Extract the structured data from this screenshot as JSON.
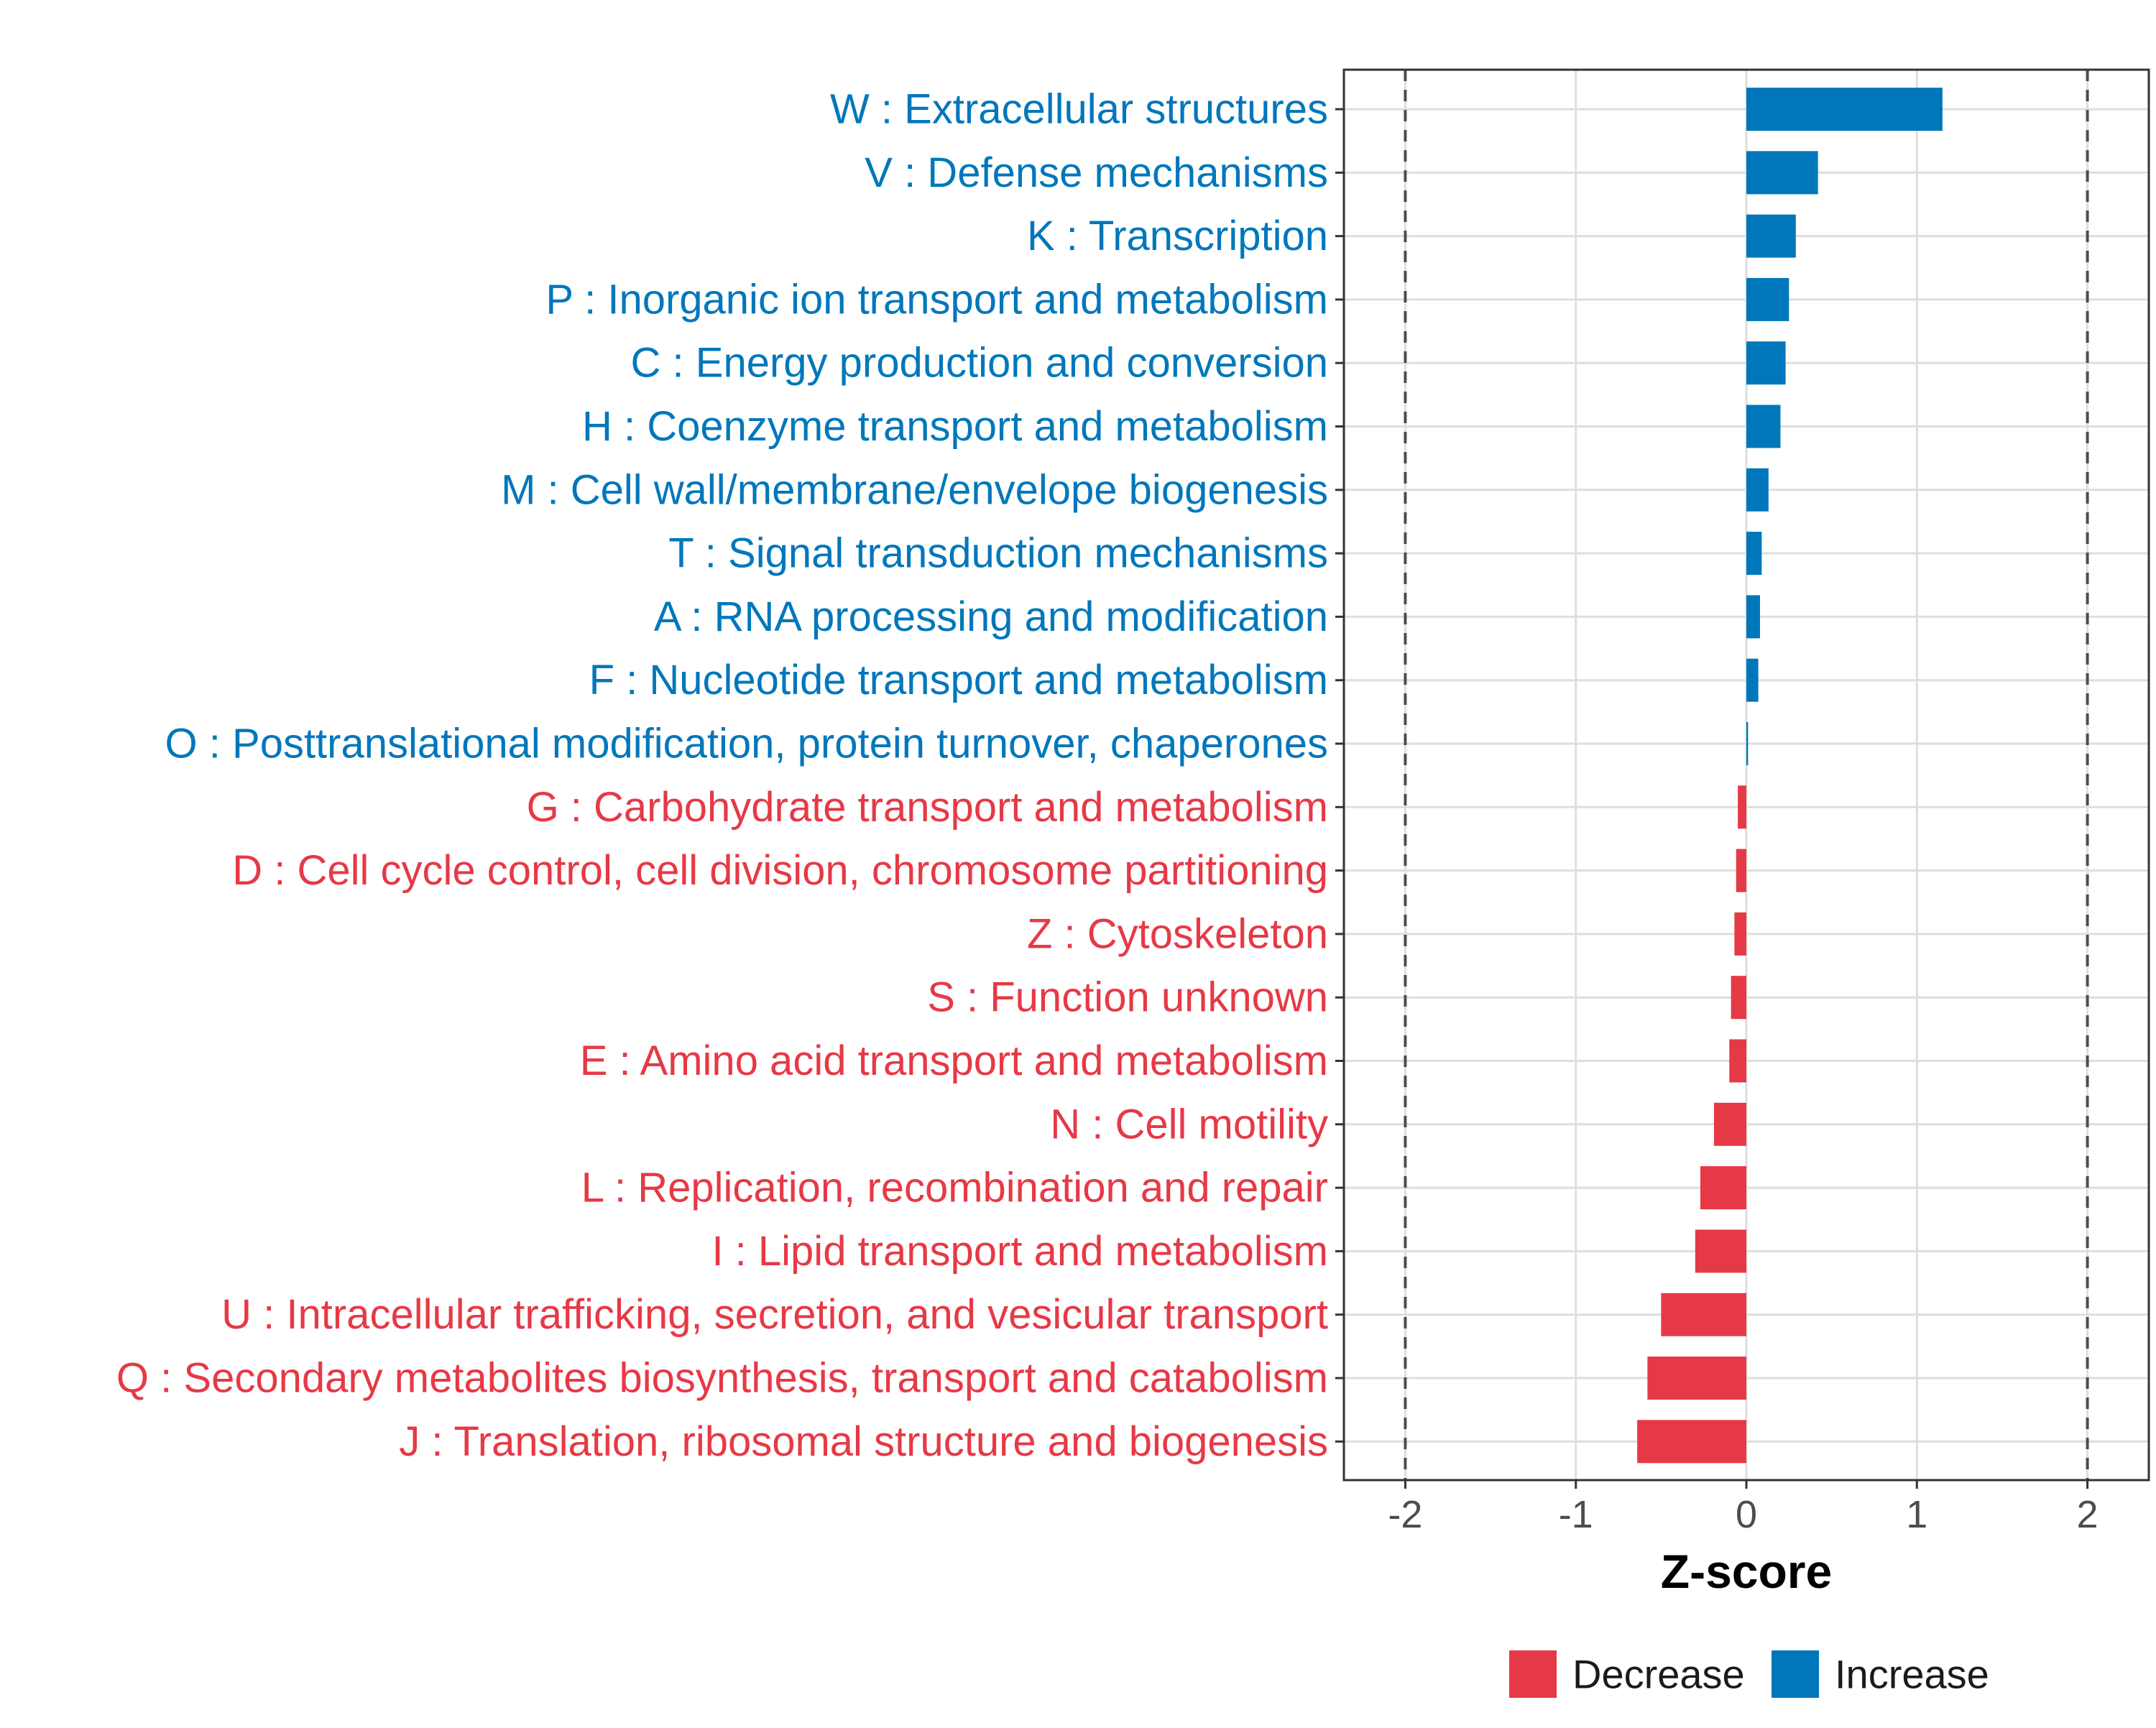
{
  "chart_data": {
    "type": "bar",
    "orientation": "horizontal",
    "title": "",
    "xlabel": "Z-score",
    "ylabel": "",
    "xlim": [
      -2.36,
      2.36
    ],
    "x_ticks": [
      {
        "value": -2,
        "label": "-2"
      },
      {
        "value": -1,
        "label": "-1"
      },
      {
        "value": 0,
        "label": "0"
      },
      {
        "value": 1,
        "label": "1"
      },
      {
        "value": 2,
        "label": "2"
      }
    ],
    "reference_lines": [
      -2,
      2
    ],
    "grid": true,
    "legend_position": "bottom",
    "legend": [
      {
        "key": "Decrease",
        "label": "Decrease",
        "color": "#E63946"
      },
      {
        "key": "Increase",
        "label": "Increase",
        "color": "#0077BB"
      }
    ],
    "categories": [
      {
        "label": "W : Extracellular structures",
        "value": 1.15,
        "group": "Increase"
      },
      {
        "label": "V : Defense mechanisms",
        "value": 0.42,
        "group": "Increase"
      },
      {
        "label": "K : Transcription",
        "value": 0.29,
        "group": "Increase"
      },
      {
        "label": "P : Inorganic ion transport and metabolism",
        "value": 0.25,
        "group": "Increase"
      },
      {
        "label": "C : Energy production and conversion",
        "value": 0.23,
        "group": "Increase"
      },
      {
        "label": "H : Coenzyme transport and metabolism",
        "value": 0.2,
        "group": "Increase"
      },
      {
        "label": "M : Cell wall/membrane/envelope biogenesis",
        "value": 0.13,
        "group": "Increase"
      },
      {
        "label": "T : Signal transduction mechanisms",
        "value": 0.09,
        "group": "Increase"
      },
      {
        "label": "A : RNA processing and modification",
        "value": 0.08,
        "group": "Increase"
      },
      {
        "label": "F : Nucleotide transport and metabolism",
        "value": 0.07,
        "group": "Increase"
      },
      {
        "label": "O : Posttranslational modification, protein turnover, chaperones",
        "value": 0.01,
        "group": "Increase"
      },
      {
        "label": "G : Carbohydrate transport and metabolism",
        "value": -0.05,
        "group": "Decrease"
      },
      {
        "label": "D : Cell cycle control, cell division, chromosome partitioning",
        "value": -0.06,
        "group": "Decrease"
      },
      {
        "label": "Z : Cytoskeleton",
        "value": -0.07,
        "group": "Decrease"
      },
      {
        "label": "S : Function unknown",
        "value": -0.09,
        "group": "Decrease"
      },
      {
        "label": "E : Amino acid transport and metabolism",
        "value": -0.1,
        "group": "Decrease"
      },
      {
        "label": "N : Cell motility",
        "value": -0.19,
        "group": "Decrease"
      },
      {
        "label": "L : Replication, recombination and repair",
        "value": -0.27,
        "group": "Decrease"
      },
      {
        "label": "I : Lipid transport and metabolism",
        "value": -0.3,
        "group": "Decrease"
      },
      {
        "label": "U : Intracellular trafficking, secretion, and vesicular transport",
        "value": -0.5,
        "group": "Decrease"
      },
      {
        "label": "Q : Secondary metabolites biosynthesis, transport and catabolism",
        "value": -0.58,
        "group": "Decrease"
      },
      {
        "label": "J : Translation, ribosomal structure and biogenesis",
        "value": -0.64,
        "group": "Decrease"
      }
    ]
  }
}
